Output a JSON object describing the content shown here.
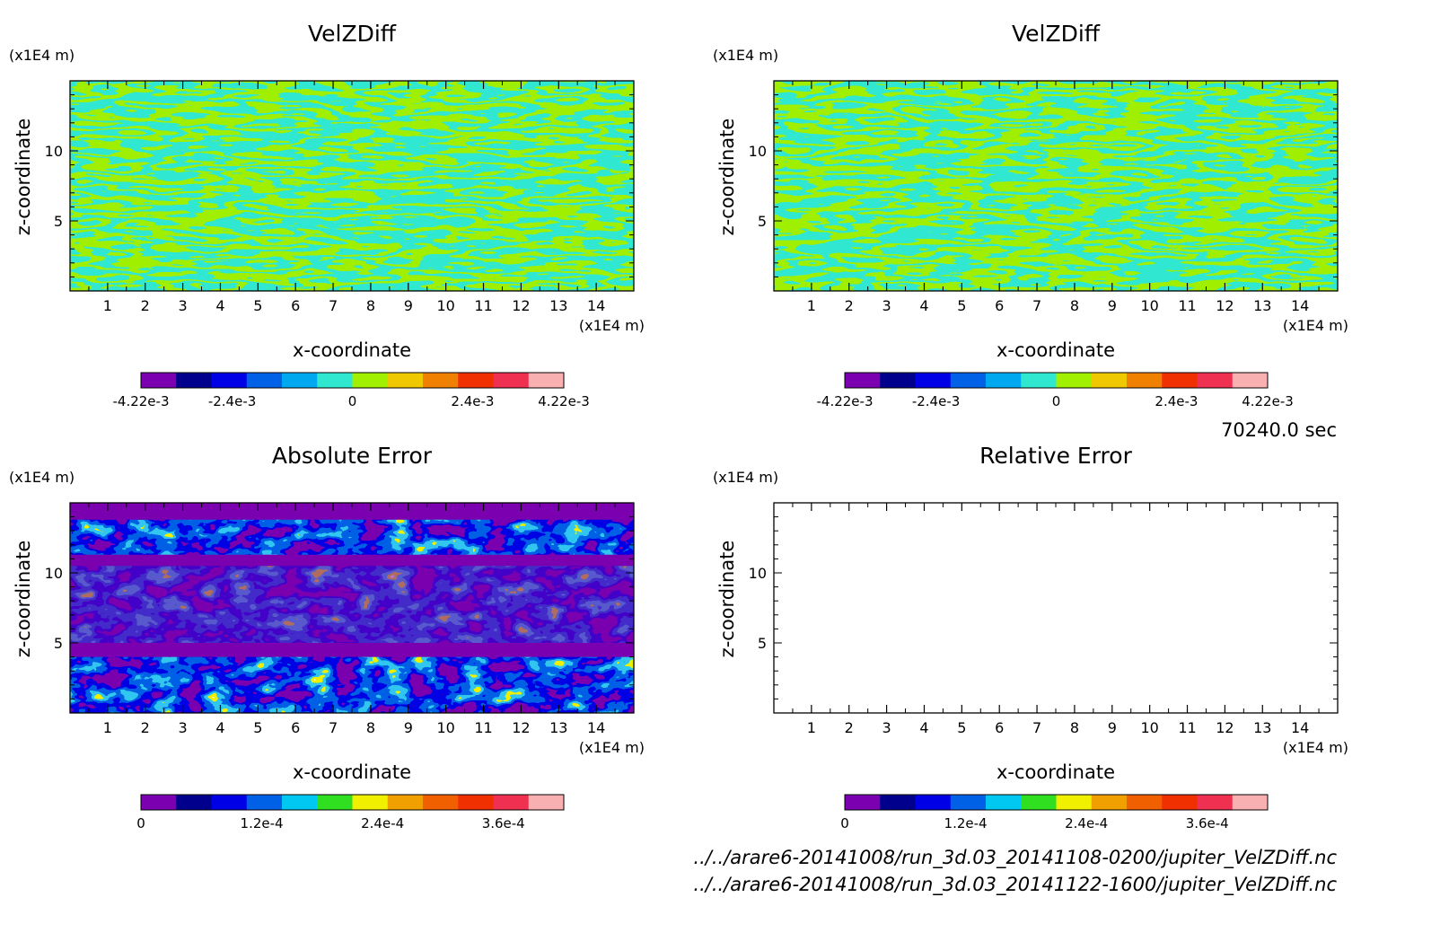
{
  "time_label": "70240.0 sec",
  "file_paths": [
    "../../arare6-20141008/run_3d.03_20141108-0200/jupiter_VelZDiff.nc",
    "../../arare6-20141008/run_3d.03_20141122-1600/jupiter_VelZDiff.nc"
  ],
  "chart_data": [
    {
      "type": "heatmap",
      "title": "VelZDiff",
      "xlabel": "x-coordinate",
      "ylabel": "z-coordinate",
      "x_unit": "(x1E4 m)",
      "y_unit": "(x1E4 m)",
      "xlim": [
        0,
        15
      ],
      "ylim": [
        0,
        15
      ],
      "x_ticks": [
        "1",
        "2",
        "3",
        "4",
        "5",
        "6",
        "7",
        "8",
        "9",
        "10",
        "11",
        "12",
        "13",
        "14"
      ],
      "y_ticks": [
        "5",
        "10"
      ],
      "pattern": "bands",
      "colorbar": {
        "range": [
          -0.00422,
          0.00422
        ],
        "tick_labels": [
          "-4.22e-3",
          "-2.4e-3",
          "0",
          "2.4e-3",
          "4.22e-3"
        ],
        "colors": [
          "#7a00b0",
          "#00008c",
          "#0000e6",
          "#0060e6",
          "#00a8f0",
          "#30e8d0",
          "#a0f000",
          "#f0c800",
          "#f08000",
          "#f03000",
          "#f03050",
          "#f8b0b0"
        ]
      }
    },
    {
      "type": "heatmap",
      "title": "VelZDiff",
      "xlabel": "x-coordinate",
      "ylabel": "z-coordinate",
      "x_unit": "(x1E4 m)",
      "y_unit": "(x1E4 m)",
      "xlim": [
        0,
        15
      ],
      "ylim": [
        0,
        15
      ],
      "x_ticks": [
        "1",
        "2",
        "3",
        "4",
        "5",
        "6",
        "7",
        "8",
        "9",
        "10",
        "11",
        "12",
        "13",
        "14"
      ],
      "y_ticks": [
        "5",
        "10"
      ],
      "pattern": "bands",
      "colorbar": {
        "range": [
          -0.00422,
          0.00422
        ],
        "tick_labels": [
          "-4.22e-3",
          "-2.4e-3",
          "0",
          "2.4e-3",
          "4.22e-3"
        ],
        "colors": [
          "#7a00b0",
          "#00008c",
          "#0000e6",
          "#0060e6",
          "#00a8f0",
          "#30e8d0",
          "#a0f000",
          "#f0c800",
          "#f08000",
          "#f03000",
          "#f03050",
          "#f8b0b0"
        ]
      }
    },
    {
      "type": "heatmap",
      "title": "Absolute Error",
      "xlabel": "x-coordinate",
      "ylabel": "z-coordinate",
      "x_unit": "(x1E4 m)",
      "y_unit": "(x1E4 m)",
      "xlim": [
        0,
        15
      ],
      "ylim": [
        0,
        15
      ],
      "x_ticks": [
        "1",
        "2",
        "3",
        "4",
        "5",
        "6",
        "7",
        "8",
        "9",
        "10",
        "11",
        "12",
        "13",
        "14"
      ],
      "y_ticks": [
        "5",
        "10"
      ],
      "pattern": "error",
      "colorbar": {
        "range": [
          0,
          0.00042
        ],
        "tick_labels": [
          "0",
          "1.2e-4",
          "2.4e-4",
          "3.6e-4"
        ],
        "colors": [
          "#7a00b0",
          "#00008c",
          "#0000e6",
          "#0060e6",
          "#00c8f0",
          "#30e020",
          "#f0f000",
          "#f0a000",
          "#f06000",
          "#f03000",
          "#f03050",
          "#f8b0b0"
        ]
      }
    },
    {
      "type": "heatmap",
      "title": "Relative Error",
      "xlabel": "x-coordinate",
      "ylabel": "z-coordinate",
      "x_unit": "(x1E4 m)",
      "y_unit": "(x1E4 m)",
      "xlim": [
        0,
        15
      ],
      "ylim": [
        0,
        15
      ],
      "x_ticks": [
        "1",
        "2",
        "3",
        "4",
        "5",
        "6",
        "7",
        "8",
        "9",
        "10",
        "11",
        "12",
        "13",
        "14"
      ],
      "y_ticks": [
        "5",
        "10"
      ],
      "pattern": "empty",
      "colorbar": {
        "range": [
          0,
          0.00042
        ],
        "tick_labels": [
          "0",
          "1.2e-4",
          "2.4e-4",
          "3.6e-4"
        ],
        "colors": [
          "#7a00b0",
          "#00008c",
          "#0000e6",
          "#0060e6",
          "#00c8f0",
          "#30e020",
          "#f0f000",
          "#f0a000",
          "#f06000",
          "#f03000",
          "#f03050",
          "#f8b0b0"
        ]
      }
    }
  ]
}
